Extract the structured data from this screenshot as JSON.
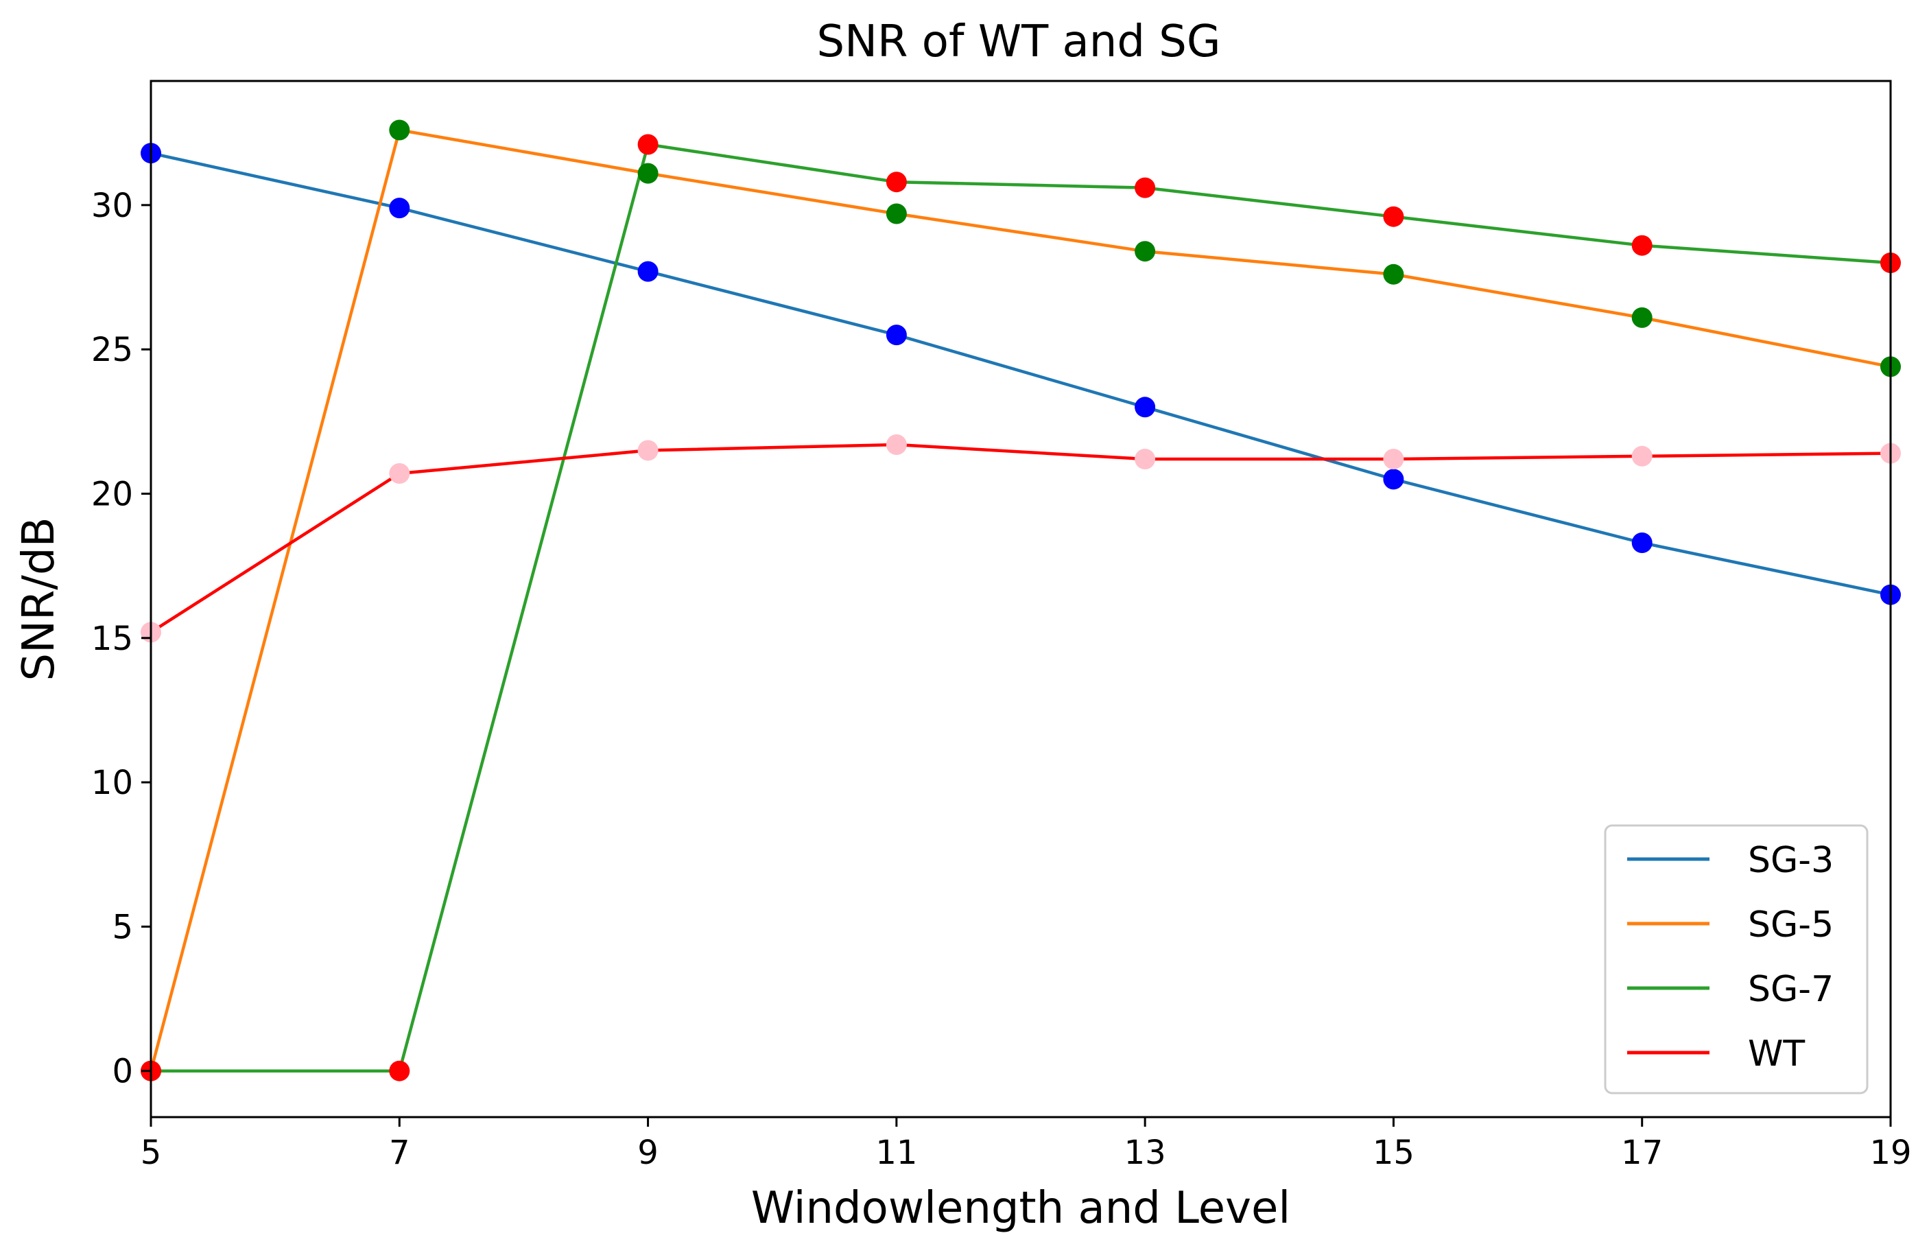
{
  "chart_data": {
    "type": "line",
    "title": "SNR of WT and SG",
    "xlabel": "Windowlength and Level",
    "ylabel": "SNR/dB",
    "x": [
      5,
      7,
      9,
      11,
      13,
      15,
      17,
      19
    ],
    "xlim": [
      5,
      19
    ],
    "ylim": [
      -1.6,
      34.3
    ],
    "xticks": [
      "5",
      "7",
      "9",
      "11",
      "13",
      "15",
      "17",
      "19"
    ],
    "yticks": [
      0,
      5,
      10,
      15,
      20,
      25,
      30
    ],
    "grid": false,
    "legend_position": "lower-right",
    "series": [
      {
        "name": "SG-3",
        "line_color": "#1f77b4",
        "marker_color": "#0000ff",
        "values": [
          31.8,
          29.9,
          27.7,
          25.5,
          23.0,
          20.5,
          18.3,
          16.5
        ]
      },
      {
        "name": "SG-5",
        "line_color": "#ff7f0e",
        "marker_color": "#008000",
        "values": [
          0.0,
          32.6,
          31.1,
          29.7,
          28.4,
          27.6,
          26.1,
          24.4
        ]
      },
      {
        "name": "SG-7",
        "line_color": "#2ca02c",
        "marker_color": "#ff0000",
        "values": [
          0.0,
          0.0,
          32.1,
          30.8,
          30.6,
          29.6,
          28.6,
          28.0
        ]
      },
      {
        "name": "WT",
        "line_color": "#ff0000",
        "marker_color": "#ffc0cb",
        "values": [
          15.2,
          20.7,
          21.5,
          21.7,
          21.2,
          21.2,
          21.3,
          21.4
        ]
      }
    ]
  }
}
